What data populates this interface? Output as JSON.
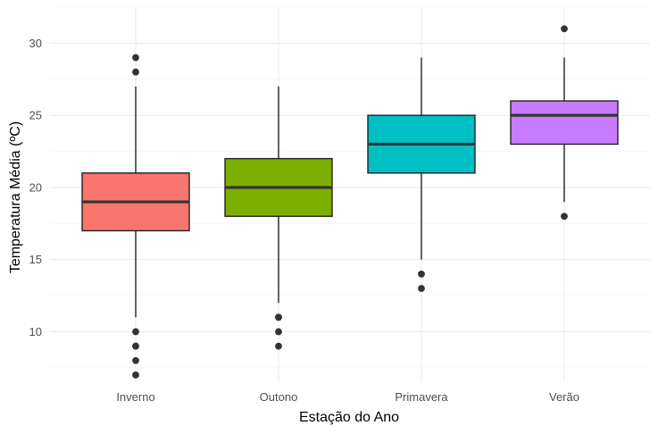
{
  "chart_data": {
    "type": "boxplot",
    "title": "",
    "xlabel": "Estação do Ano",
    "ylabel": "Temperatura Média (ºC)",
    "ylim": [
      6.5,
      32.5
    ],
    "yticks": [
      10,
      15,
      20,
      25,
      30
    ],
    "grid": true,
    "legend": "none",
    "categories": [
      "Inverno",
      "Outono",
      "Primavera",
      "Verão"
    ],
    "boxes": [
      {
        "category": "Inverno",
        "color": "#F8766D",
        "whisker_low": 11,
        "q1": 17,
        "median": 19,
        "q3": 21,
        "whisker_high": 27,
        "outliers": [
          29,
          28,
          10,
          9,
          9,
          8,
          7
        ]
      },
      {
        "category": "Outono",
        "color": "#7CAE00",
        "whisker_low": 12,
        "q1": 18,
        "median": 20,
        "q3": 22,
        "whisker_high": 27,
        "outliers": [
          11,
          11,
          10,
          9
        ]
      },
      {
        "category": "Primavera",
        "color": "#00BFC4",
        "whisker_low": 15,
        "q1": 21,
        "median": 23,
        "q3": 25,
        "whisker_high": 29,
        "outliers": [
          14,
          13
        ]
      },
      {
        "category": "Verão",
        "color": "#C77CFF",
        "whisker_low": 19,
        "q1": 23,
        "median": 25,
        "q3": 26,
        "whisker_high": 29,
        "outliers": [
          31,
          18
        ]
      }
    ]
  }
}
